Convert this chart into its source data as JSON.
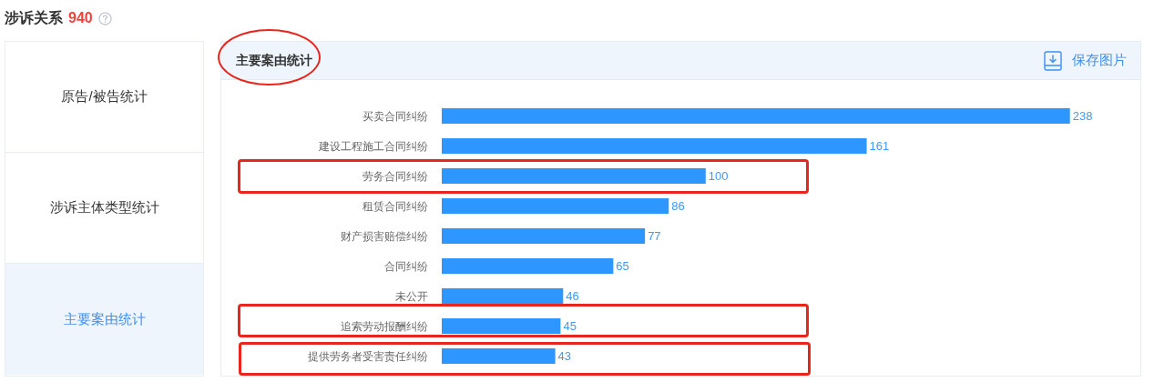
{
  "chart_data": {
    "type": "bar",
    "orientation": "horizontal",
    "title": "主要案由统计",
    "categories": [
      "买卖合同纠纷",
      "建设工程施工合同纠纷",
      "劳务合同纠纷",
      "租赁合同纠纷",
      "财产损害赔偿纠纷",
      "合同纠纷",
      "未公开",
      "追索劳动报酬纠纷",
      "提供劳务者受害责任纠纷"
    ],
    "values": [
      238,
      161,
      100,
      86,
      77,
      65,
      46,
      45,
      43
    ],
    "color": "#2e96ff",
    "data_labels": true,
    "grid": false,
    "legend": false,
    "tick_labels": "y",
    "annotations": [
      "涉诉关系",
      "940",
      "原告/被告统计",
      "涉诉主体类型统计",
      "主要案由统计",
      "保存图片"
    ]
  }
}
